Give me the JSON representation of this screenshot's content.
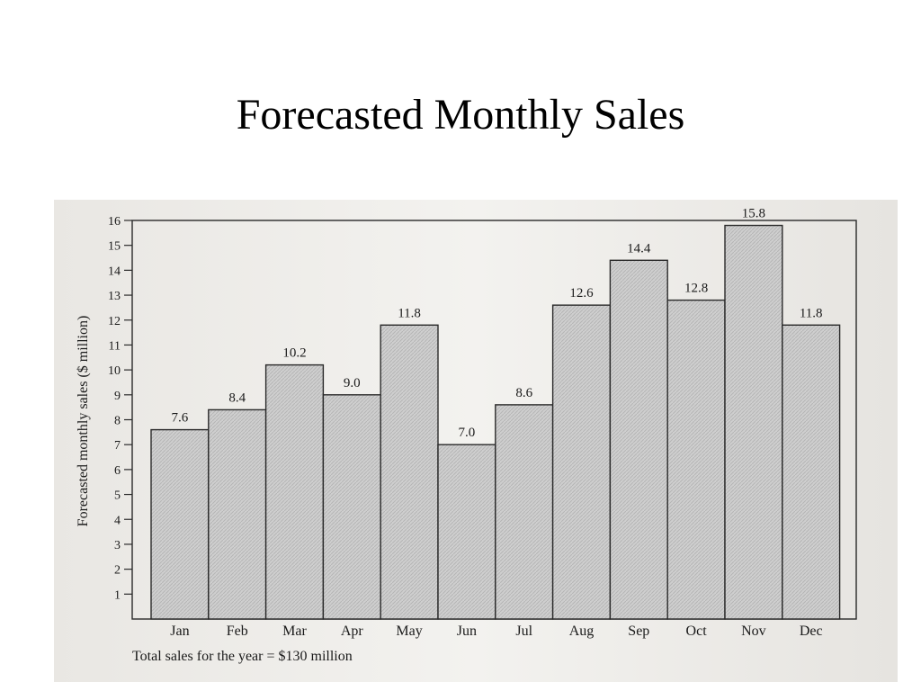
{
  "slide": {
    "title": "Forecasted Monthly Sales"
  },
  "chart_data": {
    "type": "bar",
    "categories": [
      "Jan",
      "Feb",
      "Mar",
      "Apr",
      "May",
      "Jun",
      "Jul",
      "Aug",
      "Sep",
      "Oct",
      "Nov",
      "Dec"
    ],
    "values": [
      7.6,
      8.4,
      10.2,
      9.0,
      11.8,
      7.0,
      8.6,
      12.6,
      14.4,
      12.8,
      15.8,
      11.8
    ],
    "data_labels": [
      "7.6",
      "8.4",
      "10.2",
      "9.0",
      "11.8",
      "7.0",
      "8.6",
      "12.6",
      "14.4",
      "12.8",
      "15.8",
      "11.8"
    ],
    "title": "Forecasted Monthly Sales",
    "xlabel": "",
    "ylabel": "Forecasted monthly sales ($ million)",
    "ylim": [
      0,
      16
    ],
    "yticks": [
      "1",
      "2",
      "3",
      "4",
      "5",
      "6",
      "7",
      "8",
      "9",
      "10",
      "11",
      "12",
      "13",
      "14",
      "15",
      "16"
    ],
    "footnote": "Total sales for the year = $130 million",
    "grid": false,
    "bar_color": "#c9c9c9"
  }
}
